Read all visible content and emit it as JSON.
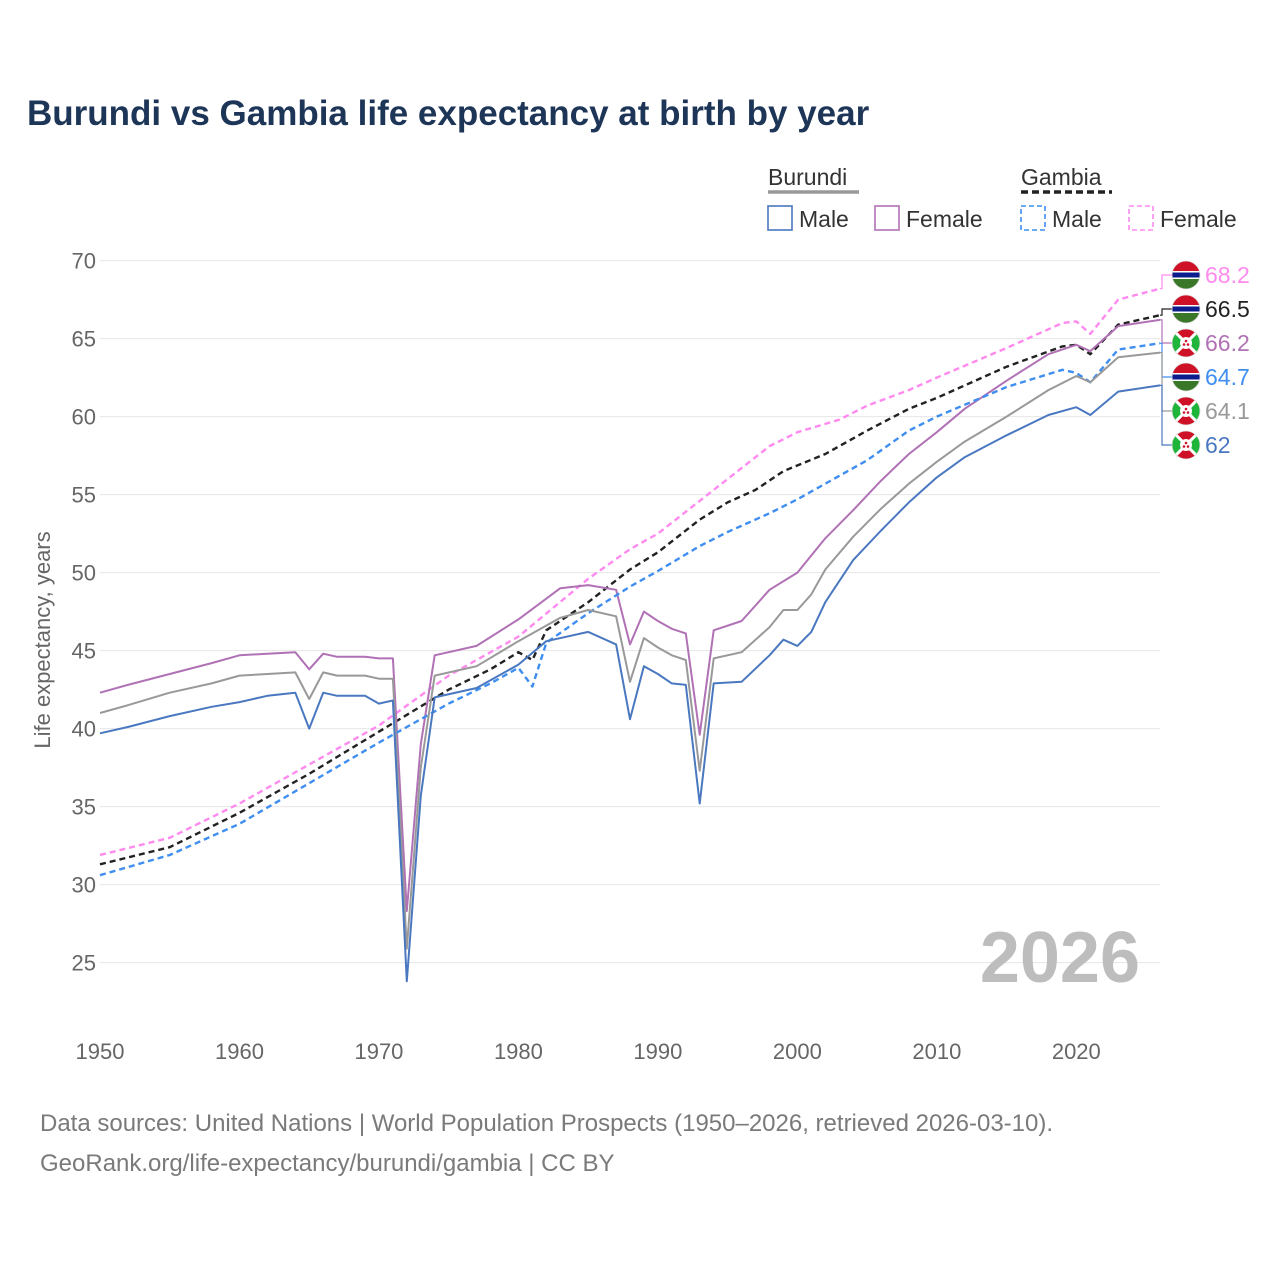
{
  "chart_data": {
    "type": "line",
    "title": "Burundi vs Gambia life expectancy at birth by year",
    "ylabel": "Life expectancy, years",
    "xlabel": "",
    "xlim": [
      1950,
      2026
    ],
    "ylim": [
      21,
      71
    ],
    "x_ticks": [
      "1950",
      "1960",
      "1970",
      "1980",
      "1990",
      "2000",
      "2010",
      "2020"
    ],
    "y_ticks": [
      "25",
      "30",
      "35",
      "40",
      "45",
      "50",
      "55",
      "60",
      "65",
      "70"
    ],
    "year_watermark": "2026",
    "legend": {
      "groups": [
        {
          "label": "Burundi",
          "color": "#999999",
          "dash": false
        },
        {
          "label": "Gambia",
          "color": "#222222",
          "dash": true
        }
      ],
      "items": [
        {
          "label": "Male",
          "color": "#4a78c0",
          "dash": false
        },
        {
          "label": "Female",
          "color": "#b071b5",
          "dash": false
        },
        {
          "label": "Male",
          "color": "#3f8ef0",
          "dash": true
        },
        {
          "label": "Female",
          "color": "#ff8aef",
          "dash": true
        }
      ]
    },
    "series": [
      {
        "name": "Gambia Female",
        "color": "#ff8aef",
        "dash": true,
        "flag": "gambia",
        "end_label": "68.2",
        "points": [
          [
            1950,
            31.9
          ],
          [
            1955,
            33.0
          ],
          [
            1960,
            35.2
          ],
          [
            1965,
            37.7
          ],
          [
            1970,
            40.2
          ],
          [
            1975,
            43.4
          ],
          [
            1978,
            44.9
          ],
          [
            1980,
            45.9
          ],
          [
            1985,
            49.6
          ],
          [
            1988,
            51.5
          ],
          [
            1990,
            52.5
          ],
          [
            1994,
            55.3
          ],
          [
            1998,
            58.1
          ],
          [
            2000,
            59.0
          ],
          [
            2003,
            59.8
          ],
          [
            2005,
            60.7
          ],
          [
            2008,
            61.7
          ],
          [
            2010,
            62.5
          ],
          [
            2015,
            64.4
          ],
          [
            2019,
            66.0
          ],
          [
            2020,
            66.1
          ],
          [
            2021,
            65.3
          ],
          [
            2023,
            67.5
          ],
          [
            2026,
            68.2
          ]
        ]
      },
      {
        "name": "Gambia Total",
        "color": "#222222",
        "dash": true,
        "flag": "gambia",
        "end_label": "66.5",
        "points": [
          [
            1950,
            31.3
          ],
          [
            1955,
            32.4
          ],
          [
            1960,
            34.6
          ],
          [
            1965,
            37.1
          ],
          [
            1970,
            39.8
          ],
          [
            1975,
            42.5
          ],
          [
            1978,
            43.8
          ],
          [
            1980,
            44.9
          ],
          [
            1981,
            44.4
          ],
          [
            1982,
            46.3
          ],
          [
            1985,
            48.1
          ],
          [
            1988,
            50.2
          ],
          [
            1990,
            51.3
          ],
          [
            1993,
            53.4
          ],
          [
            1995,
            54.5
          ],
          [
            1997,
            55.3
          ],
          [
            1999,
            56.5
          ],
          [
            2002,
            57.6
          ],
          [
            2005,
            59.1
          ],
          [
            2008,
            60.5
          ],
          [
            2010,
            61.2
          ],
          [
            2015,
            63.2
          ],
          [
            2019,
            64.5
          ],
          [
            2020,
            64.6
          ],
          [
            2021,
            64.0
          ],
          [
            2023,
            65.9
          ],
          [
            2026,
            66.5
          ]
        ]
      },
      {
        "name": "Burundi Female",
        "color": "#b071b5",
        "dash": false,
        "flag": "burundi",
        "end_label": "66.2",
        "points": [
          [
            1950,
            42.3
          ],
          [
            1952,
            42.8
          ],
          [
            1955,
            43.5
          ],
          [
            1958,
            44.2
          ],
          [
            1960,
            44.7
          ],
          [
            1962,
            44.8
          ],
          [
            1964,
            44.9
          ],
          [
            1965,
            43.8
          ],
          [
            1966,
            44.8
          ],
          [
            1967,
            44.6
          ],
          [
            1969,
            44.6
          ],
          [
            1970,
            44.5
          ],
          [
            1971,
            44.5
          ],
          [
            1972,
            28.3
          ],
          [
            1973,
            39.0
          ],
          [
            1974,
            44.7
          ],
          [
            1977,
            45.3
          ],
          [
            1980,
            47.0
          ],
          [
            1983,
            49.0
          ],
          [
            1985,
            49.2
          ],
          [
            1987,
            48.9
          ],
          [
            1988,
            45.4
          ],
          [
            1989,
            47.5
          ],
          [
            1990,
            46.9
          ],
          [
            1991,
            46.4
          ],
          [
            1992,
            46.1
          ],
          [
            1993,
            39.6
          ],
          [
            1994,
            46.3
          ],
          [
            1996,
            46.9
          ],
          [
            1998,
            48.9
          ],
          [
            2000,
            50.0
          ],
          [
            2002,
            52.2
          ],
          [
            2004,
            54.0
          ],
          [
            2006,
            55.9
          ],
          [
            2008,
            57.6
          ],
          [
            2010,
            59.0
          ],
          [
            2012,
            60.5
          ],
          [
            2015,
            62.3
          ],
          [
            2018,
            64.0
          ],
          [
            2020,
            64.6
          ],
          [
            2021,
            64.2
          ],
          [
            2023,
            65.8
          ],
          [
            2026,
            66.2
          ]
        ]
      },
      {
        "name": "Gambia Male",
        "color": "#3f8ef0",
        "dash": true,
        "flag": "gambia",
        "end_label": "64.7",
        "points": [
          [
            1950,
            30.6
          ],
          [
            1955,
            31.9
          ],
          [
            1960,
            33.9
          ],
          [
            1965,
            36.5
          ],
          [
            1970,
            39.1
          ],
          [
            1975,
            41.6
          ],
          [
            1978,
            42.9
          ],
          [
            1980,
            43.9
          ],
          [
            1981,
            42.7
          ],
          [
            1982,
            45.5
          ],
          [
            1985,
            47.4
          ],
          [
            1988,
            49.1
          ],
          [
            1990,
            50.1
          ],
          [
            1993,
            51.7
          ],
          [
            1995,
            52.6
          ],
          [
            1998,
            53.8
          ],
          [
            2000,
            54.7
          ],
          [
            2005,
            57.2
          ],
          [
            2008,
            59.1
          ],
          [
            2010,
            60.0
          ],
          [
            2015,
            61.9
          ],
          [
            2019,
            63.0
          ],
          [
            2020,
            62.8
          ],
          [
            2021,
            62.2
          ],
          [
            2023,
            64.3
          ],
          [
            2026,
            64.7
          ]
        ]
      },
      {
        "name": "Burundi Total",
        "color": "#999999",
        "dash": false,
        "flag": "burundi",
        "end_label": "64.1",
        "points": [
          [
            1950,
            41.0
          ],
          [
            1952,
            41.5
          ],
          [
            1955,
            42.3
          ],
          [
            1958,
            42.9
          ],
          [
            1960,
            43.4
          ],
          [
            1962,
            43.5
          ],
          [
            1964,
            43.6
          ],
          [
            1965,
            41.9
          ],
          [
            1966,
            43.6
          ],
          [
            1967,
            43.4
          ],
          [
            1969,
            43.4
          ],
          [
            1970,
            43.2
          ],
          [
            1971,
            43.2
          ],
          [
            1972,
            25.9
          ],
          [
            1973,
            37.5
          ],
          [
            1974,
            43.4
          ],
          [
            1977,
            44.0
          ],
          [
            1980,
            45.6
          ],
          [
            1983,
            47.1
          ],
          [
            1985,
            47.6
          ],
          [
            1987,
            47.2
          ],
          [
            1988,
            43.0
          ],
          [
            1989,
            45.8
          ],
          [
            1990,
            45.2
          ],
          [
            1991,
            44.7
          ],
          [
            1992,
            44.4
          ],
          [
            1993,
            37.3
          ],
          [
            1994,
            44.5
          ],
          [
            1996,
            44.9
          ],
          [
            1998,
            46.5
          ],
          [
            1999,
            47.6
          ],
          [
            2000,
            47.6
          ],
          [
            2001,
            48.6
          ],
          [
            2002,
            50.2
          ],
          [
            2004,
            52.3
          ],
          [
            2006,
            54.1
          ],
          [
            2008,
            55.7
          ],
          [
            2010,
            57.1
          ],
          [
            2012,
            58.4
          ],
          [
            2015,
            60.0
          ],
          [
            2018,
            61.7
          ],
          [
            2020,
            62.6
          ],
          [
            2021,
            62.2
          ],
          [
            2023,
            63.8
          ],
          [
            2026,
            64.1
          ]
        ]
      },
      {
        "name": "Burundi Male",
        "color": "#4a78c0",
        "dash": false,
        "flag": "burundi",
        "end_label": "62",
        "points": [
          [
            1950,
            39.7
          ],
          [
            1952,
            40.1
          ],
          [
            1955,
            40.8
          ],
          [
            1958,
            41.4
          ],
          [
            1960,
            41.7
          ],
          [
            1962,
            42.1
          ],
          [
            1964,
            42.3
          ],
          [
            1965,
            40.0
          ],
          [
            1966,
            42.3
          ],
          [
            1967,
            42.1
          ],
          [
            1969,
            42.1
          ],
          [
            1970,
            41.6
          ],
          [
            1971,
            41.8
          ],
          [
            1972,
            23.8
          ],
          [
            1973,
            35.7
          ],
          [
            1974,
            42.0
          ],
          [
            1977,
            42.6
          ],
          [
            1980,
            44.1
          ],
          [
            1982,
            45.6
          ],
          [
            1985,
            46.2
          ],
          [
            1987,
            45.4
          ],
          [
            1988,
            40.6
          ],
          [
            1989,
            44.0
          ],
          [
            1990,
            43.5
          ],
          [
            1991,
            42.9
          ],
          [
            1992,
            42.8
          ],
          [
            1993,
            35.2
          ],
          [
            1994,
            42.9
          ],
          [
            1996,
            43.0
          ],
          [
            1998,
            44.7
          ],
          [
            1999,
            45.7
          ],
          [
            2000,
            45.3
          ],
          [
            2001,
            46.2
          ],
          [
            2002,
            48.1
          ],
          [
            2004,
            50.8
          ],
          [
            2006,
            52.7
          ],
          [
            2008,
            54.5
          ],
          [
            2010,
            56.1
          ],
          [
            2012,
            57.4
          ],
          [
            2015,
            58.8
          ],
          [
            2018,
            60.1
          ],
          [
            2020,
            60.6
          ],
          [
            2021,
            60.1
          ],
          [
            2023,
            61.6
          ],
          [
            2026,
            62.0
          ]
        ]
      }
    ]
  },
  "footer": {
    "line1": "Data sources: United Nations | World Population Prospects (1950–2026, retrieved 2026-03-10).",
    "line2": "GeoRank.org/life-expectancy/burundi/gambia | CC BY"
  }
}
